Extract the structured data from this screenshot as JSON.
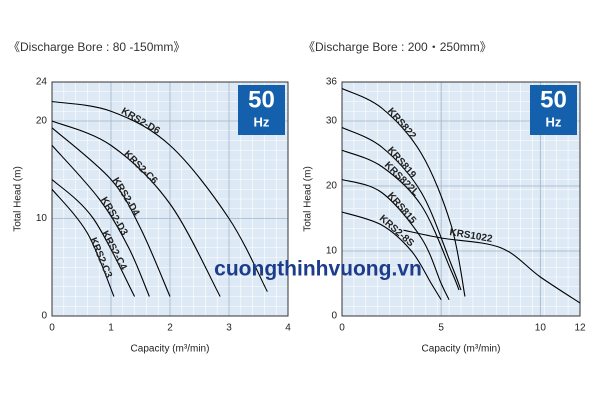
{
  "watermark": "cuongthinhvuong.vn",
  "chart_data": [
    {
      "type": "line",
      "subtitle": "《Discharge Bore : 80 -150mm》",
      "badge": {
        "value": "50",
        "unit": "Hz"
      },
      "xlabel": "Capacity (m³/min)",
      "ylabel": "Total Head (m)",
      "xlim": [
        0,
        4
      ],
      "ylim": [
        0,
        24
      ],
      "xticks": [
        0,
        1,
        2,
        3,
        4
      ],
      "yticks": [
        0,
        10,
        20,
        24
      ],
      "grid": true,
      "color": "#000000",
      "series": [
        {
          "name": "KRS2-D6",
          "x": [
            0,
            1,
            2,
            3,
            3.65
          ],
          "values": [
            22,
            21,
            17.5,
            10,
            2.5
          ]
        },
        {
          "name": "KRS2-C6",
          "x": [
            0,
            1,
            2,
            2.85
          ],
          "values": [
            20,
            17.5,
            11.5,
            2
          ]
        },
        {
          "name": "KRS2-D4",
          "x": [
            0,
            1,
            1.5,
            2
          ],
          "values": [
            19.3,
            14,
            9,
            2
          ]
        },
        {
          "name": "KRS2-D3",
          "x": [
            0,
            0.8,
            1.3,
            1.65
          ],
          "values": [
            17.5,
            12,
            7,
            2
          ]
        },
        {
          "name": "KRS2-C4",
          "x": [
            0,
            0.7,
            1.4
          ],
          "values": [
            14,
            10,
            2
          ]
        },
        {
          "name": "KRS2-C3",
          "x": [
            0,
            0.6,
            1.05
          ],
          "values": [
            13,
            8.5,
            2
          ]
        }
      ]
    },
    {
      "type": "line",
      "subtitle": "《Discharge Bore : 200・250mm》",
      "badge": {
        "value": "50",
        "unit": "Hz"
      },
      "xlabel": "Capacity (m³/min)",
      "ylabel": "Total Head (m)",
      "xlim": [
        0,
        12
      ],
      "ylim": [
        0,
        36
      ],
      "xticks": [
        0,
        5,
        10,
        12
      ],
      "yticks": [
        0,
        10,
        20,
        30,
        36
      ],
      "grid": true,
      "color": "#000000",
      "series": [
        {
          "name": "KRS822",
          "x": [
            0,
            2,
            4,
            5.5,
            6.2
          ],
          "values": [
            35,
            32,
            25,
            14,
            3
          ]
        },
        {
          "name": "KRS819",
          "x": [
            0,
            2,
            4,
            5.5,
            6
          ],
          "values": [
            29,
            26,
            19,
            8,
            4
          ]
        },
        {
          "name": "KRS822L",
          "x": [
            0,
            2,
            4,
            5.5,
            5.9
          ],
          "values": [
            25.5,
            23,
            17,
            7,
            4
          ]
        },
        {
          "name": "KRS815",
          "x": [
            0,
            2,
            4,
            5,
            5.4
          ],
          "values": [
            21,
            19,
            12,
            5,
            2.5
          ]
        },
        {
          "name": "KRS2-8S",
          "x": [
            0,
            2,
            3.5,
            4.5,
            5
          ],
          "values": [
            16,
            14,
            10,
            5,
            2.5
          ]
        },
        {
          "name": "KRS1022",
          "x": [
            3.1,
            5,
            8,
            10,
            12
          ],
          "values": [
            13.2,
            12,
            10.5,
            6,
            2
          ]
        }
      ]
    }
  ]
}
